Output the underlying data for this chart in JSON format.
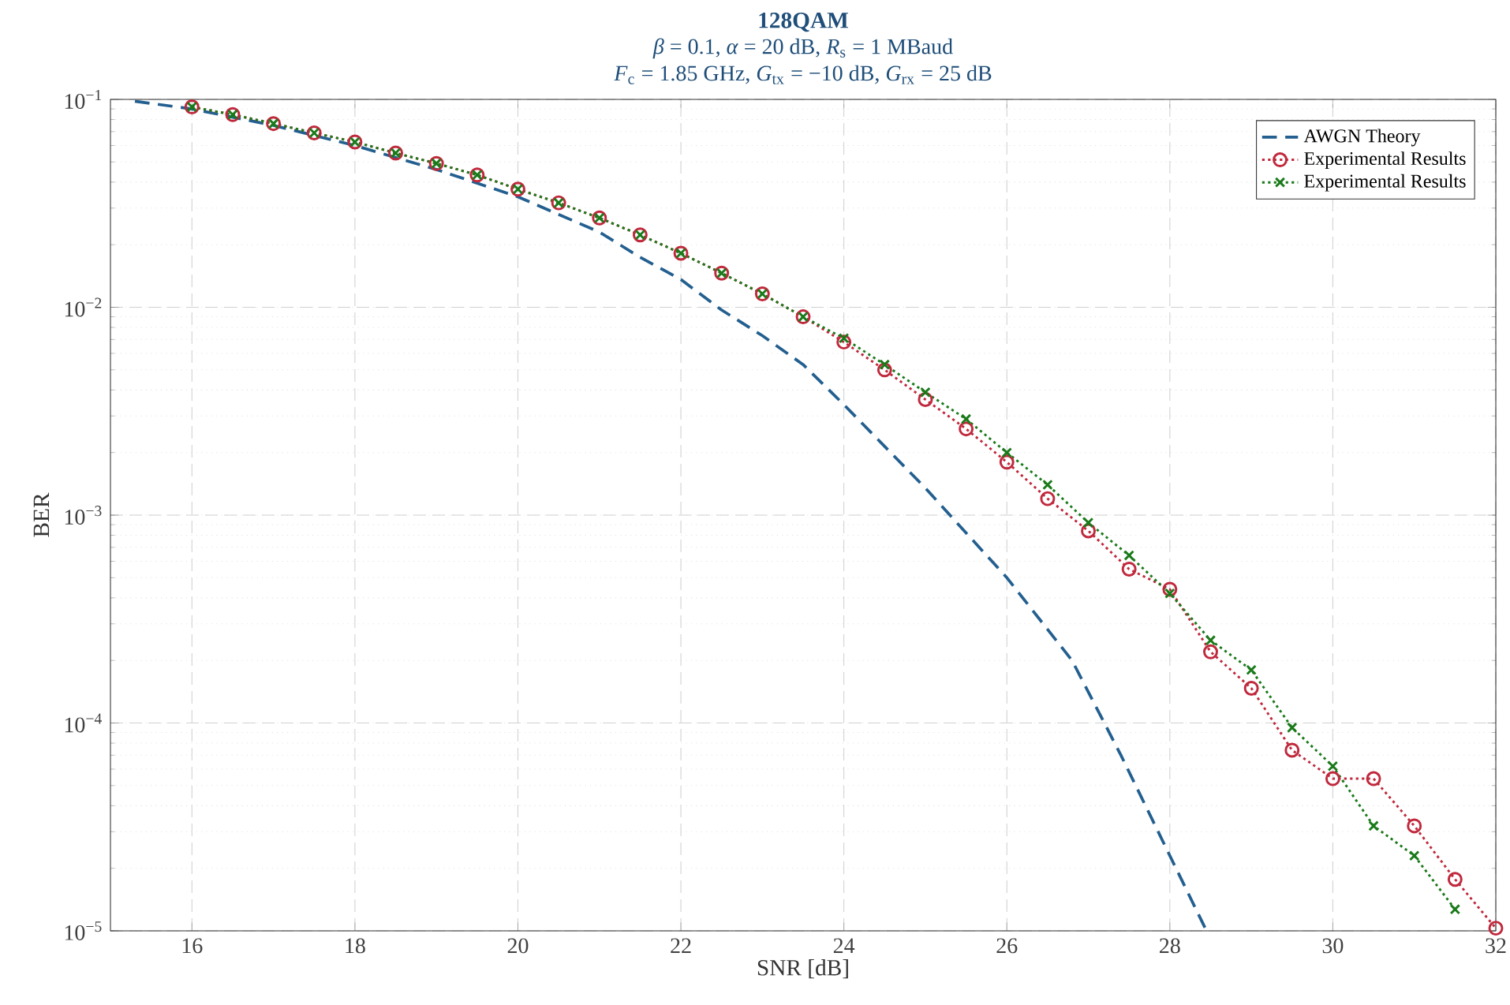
{
  "chart_data": {
    "type": "line",
    "title": "128QAM",
    "subtitle": "*β* = 0.1, *α* = 20 dB, *R*$_{s}$ = 1 MBaud",
    "annotations": [
      "*F*$_{c}$ = 1.85 GHz, *G*$_{tx}$ = −10 dB, *G*$_{rx}$ = 25 dB"
    ],
    "xlabel": "SNR [dB]",
    "ylabel": "BER",
    "xlim": [
      15,
      32
    ],
    "ylim": [
      1e-05,
      0.1
    ],
    "log": "y",
    "xticks": [
      16,
      18,
      20,
      22,
      24,
      26,
      28,
      30,
      32
    ],
    "yticks": [
      {
        "value": 1e-05,
        "label": "10$^{−5}$"
      },
      {
        "value": 0.0001,
        "label": "10$^{−4}$"
      },
      {
        "value": 0.001,
        "label": "10$^{−3}$"
      },
      {
        "value": 0.01,
        "label": "10$^{−2}$"
      },
      {
        "value": 0.1,
        "label": "10$^{−1}$"
      }
    ],
    "grid": true,
    "legend": "top right",
    "series": [
      {
        "name": "AWGN Theory",
        "color": "#235f8f",
        "marker": "none",
        "line_style": "dashed",
        "x": [
          15.3,
          16,
          17,
          18,
          19,
          20,
          21,
          21.5,
          22,
          22.5,
          23,
          23.5,
          24,
          25,
          26,
          26.8,
          27.4,
          28,
          28.45
        ],
        "values": [
          0.098,
          0.09,
          0.075,
          0.06,
          0.046,
          0.034,
          0.023,
          0.0174,
          0.0136,
          0.0097,
          0.0073,
          0.0053,
          0.0034,
          0.00135,
          0.0005,
          0.0002,
          7e-05,
          2.3e-05,
          1e-05
        ]
      },
      {
        "name": "Experimental Results",
        "color": "#c0283c",
        "marker": "circle",
        "line_style": "dotted",
        "x": [
          16,
          16.5,
          17,
          17.5,
          18,
          18.5,
          19,
          19.5,
          20,
          20.5,
          21,
          21.5,
          22,
          22.5,
          23,
          23.5,
          24,
          24.5,
          25,
          25.5,
          26,
          26.5,
          27,
          27.5,
          28,
          28.5,
          29,
          29.5,
          30,
          30.5,
          31,
          31.5,
          32
        ],
        "values": [
          0.092,
          0.0845,
          0.0765,
          0.069,
          0.0624,
          0.0552,
          0.0492,
          0.0433,
          0.037,
          0.0318,
          0.0269,
          0.0223,
          0.0182,
          0.0146,
          0.0116,
          0.009,
          0.0068,
          0.005,
          0.0036,
          0.0026,
          0.0018,
          0.0012,
          0.00084,
          0.00055,
          0.00044,
          0.00022,
          0.000147,
          7.4e-05,
          5.4e-05,
          5.4e-05,
          3.2e-05,
          1.77e-05,
          1.03e-05
        ]
      },
      {
        "name": "Experimental Results",
        "color": "#1a7a1a",
        "marker": "cross",
        "line_style": "dotted",
        "x": [
          16,
          16.5,
          17,
          17.5,
          18,
          18.5,
          19,
          19.5,
          20,
          20.5,
          21,
          21.5,
          22,
          22.5,
          23,
          23.5,
          24,
          24.5,
          25,
          25.5,
          26,
          26.5,
          27,
          27.5,
          28,
          28.5,
          29,
          29.5,
          30,
          30.5,
          31,
          31.5
        ],
        "values": [
          0.092,
          0.0845,
          0.0765,
          0.069,
          0.0624,
          0.0552,
          0.0492,
          0.0433,
          0.037,
          0.0318,
          0.0269,
          0.0223,
          0.0182,
          0.0146,
          0.0116,
          0.009,
          0.0071,
          0.0053,
          0.0039,
          0.0029,
          0.002,
          0.0014,
          0.00092,
          0.00064,
          0.00042,
          0.00025,
          0.00018,
          9.5e-05,
          6.2e-05,
          3.2e-05,
          2.3e-05,
          1.27e-05
        ]
      }
    ]
  }
}
